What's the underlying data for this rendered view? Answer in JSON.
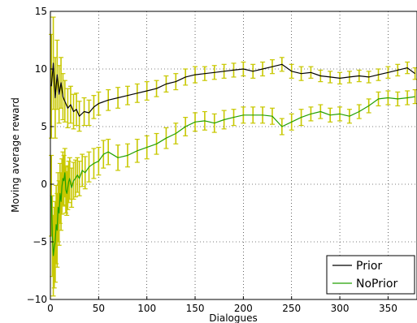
{
  "chart_data": {
    "type": "line",
    "xlabel": "Dialogues",
    "ylabel": "Moving average reward",
    "xlim": [
      0,
      380
    ],
    "ylim": [
      -10,
      15
    ],
    "xticks": [
      0,
      50,
      100,
      150,
      200,
      250,
      300,
      350
    ],
    "yticks": [
      -10,
      -5,
      0,
      5,
      10,
      15
    ],
    "grid": true,
    "legend_position": "lower-right",
    "series": [
      {
        "name": "Prior",
        "color": "#000000",
        "errorbar_color": "#c8c800",
        "x": [
          1,
          3,
          5,
          7,
          9,
          11,
          13,
          15,
          18,
          21,
          24,
          27,
          30,
          35,
          40,
          45,
          50,
          60,
          70,
          80,
          90,
          100,
          110,
          120,
          130,
          140,
          150,
          160,
          170,
          180,
          190,
          200,
          210,
          220,
          230,
          240,
          250,
          260,
          270,
          280,
          290,
          300,
          310,
          320,
          330,
          340,
          350,
          360,
          370,
          378
        ],
        "y": [
          8.5,
          10.5,
          7.5,
          9.5,
          7.8,
          8.8,
          7.6,
          7.2,
          6.6,
          6.9,
          6.3,
          6.5,
          5.9,
          6.3,
          6.2,
          6.7,
          7.0,
          7.3,
          7.5,
          7.7,
          7.9,
          8.1,
          8.3,
          8.7,
          8.9,
          9.3,
          9.5,
          9.6,
          9.7,
          9.8,
          9.9,
          10.0,
          9.8,
          10.0,
          10.2,
          10.4,
          9.8,
          9.6,
          9.7,
          9.4,
          9.3,
          9.2,
          9.3,
          9.4,
          9.3,
          9.5,
          9.7,
          9.9,
          10.1,
          9.6
        ],
        "err": [
          4.5,
          4.0,
          3.5,
          3.0,
          2.5,
          2.2,
          2.0,
          1.8,
          1.7,
          1.6,
          1.5,
          1.4,
          1.3,
          1.2,
          1.1,
          1.0,
          1.0,
          0.9,
          0.9,
          0.8,
          0.8,
          0.8,
          0.7,
          0.7,
          0.7,
          0.7,
          0.7,
          0.6,
          0.6,
          0.6,
          0.6,
          0.6,
          0.6,
          0.6,
          0.6,
          0.6,
          0.6,
          0.6,
          0.5,
          0.5,
          0.5,
          0.5,
          0.5,
          0.5,
          0.5,
          0.5,
          0.5,
          0.5,
          0.5,
          0.5
        ]
      },
      {
        "name": "NoPrior",
        "color": "#22a000",
        "errorbar_color": "#c8c800",
        "x": [
          1,
          2,
          3,
          4,
          5,
          6,
          7,
          8,
          9,
          10,
          11,
          12,
          13,
          14,
          15,
          16,
          17,
          18,
          19,
          20,
          22,
          24,
          26,
          28,
          30,
          33,
          36,
          40,
          45,
          50,
          55,
          60,
          70,
          80,
          90,
          100,
          110,
          120,
          130,
          140,
          150,
          160,
          170,
          180,
          190,
          200,
          210,
          220,
          230,
          240,
          250,
          260,
          270,
          280,
          290,
          300,
          310,
          320,
          330,
          340,
          350,
          360,
          370,
          378
        ],
        "y": [
          -1.0,
          -4.5,
          -6.2,
          -5.5,
          -5.0,
          -3.5,
          -4.0,
          -2.0,
          -2.5,
          -0.8,
          -1.5,
          -0.2,
          0.5,
          0.3,
          1.0,
          -0.5,
          -0.8,
          -0.3,
          0.2,
          0.5,
          -0.3,
          0.3,
          0.5,
          0.8,
          0.5,
          1.2,
          1.0,
          1.5,
          1.8,
          2.0,
          2.6,
          2.8,
          2.3,
          2.5,
          2.9,
          3.2,
          3.5,
          4.0,
          4.4,
          5.0,
          5.4,
          5.5,
          5.3,
          5.6,
          5.8,
          6.0,
          6.0,
          6.0,
          5.9,
          5.0,
          5.4,
          5.8,
          6.1,
          6.3,
          6.0,
          6.1,
          5.9,
          6.3,
          6.8,
          7.4,
          7.5,
          7.4,
          7.5,
          7.6
        ],
        "err": [
          3.5,
          3.5,
          3.5,
          3.5,
          3.5,
          3.4,
          3.2,
          3.0,
          2.8,
          2.6,
          2.5,
          2.4,
          2.3,
          2.2,
          2.1,
          2.0,
          1.9,
          1.9,
          1.8,
          1.8,
          1.7,
          1.6,
          1.6,
          1.5,
          1.5,
          1.4,
          1.4,
          1.3,
          1.3,
          1.2,
          1.2,
          1.1,
          1.1,
          1.0,
          1.0,
          1.0,
          0.9,
          0.9,
          0.9,
          0.8,
          0.8,
          0.8,
          0.8,
          0.8,
          0.7,
          0.7,
          0.7,
          0.7,
          0.7,
          0.7,
          0.7,
          0.7,
          0.6,
          0.6,
          0.6,
          0.6,
          0.6,
          0.6,
          0.6,
          0.6,
          0.6,
          0.6,
          0.6,
          0.6
        ]
      }
    ]
  }
}
